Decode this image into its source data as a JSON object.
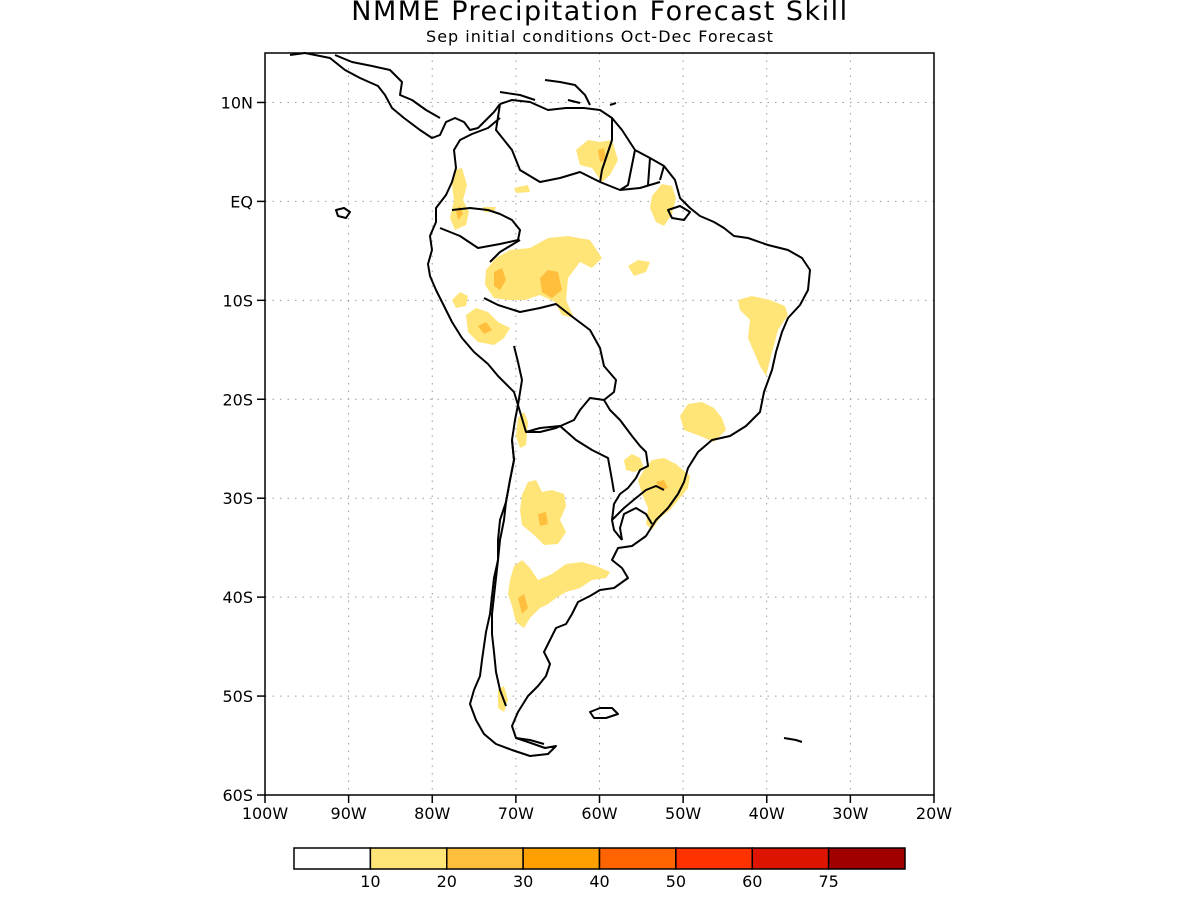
{
  "header": {
    "title": "NMME Precipitation Forecast Skill",
    "subtitle": "Sep initial conditions  Oct-Dec Forecast"
  },
  "map": {
    "region": "South America",
    "lon_range": [
      -100,
      -20
    ],
    "lat_range": [
      -60,
      15
    ],
    "lat_ticks": [
      {
        "lat": 10,
        "label": "10N"
      },
      {
        "lat": 0,
        "label": "EQ"
      },
      {
        "lat": -10,
        "label": "10S"
      },
      {
        "lat": -20,
        "label": "20S"
      },
      {
        "lat": -30,
        "label": "30S"
      },
      {
        "lat": -40,
        "label": "40S"
      },
      {
        "lat": -50,
        "label": "50S"
      },
      {
        "lat": -60,
        "label": "60S"
      }
    ],
    "lon_ticks": [
      {
        "lon": -100,
        "label": "100W"
      },
      {
        "lon": -90,
        "label": "90W"
      },
      {
        "lon": -80,
        "label": "80W"
      },
      {
        "lon": -70,
        "label": "70W"
      },
      {
        "lon": -60,
        "label": "60W"
      },
      {
        "lon": -50,
        "label": "50W"
      },
      {
        "lon": -40,
        "label": "40W"
      },
      {
        "lon": -30,
        "label": "30W"
      },
      {
        "lon": -20,
        "label": "20W"
      }
    ],
    "grid": "dotted"
  },
  "colorbar": {
    "colors": [
      "#ffffff",
      "#ffe478",
      "#ffbe3c",
      "#ffa000",
      "#ff6400",
      "#ff3200",
      "#dc1400",
      "#a00000"
    ],
    "labels": [
      "10",
      "20",
      "30",
      "40",
      "50",
      "60",
      "75"
    ]
  }
}
